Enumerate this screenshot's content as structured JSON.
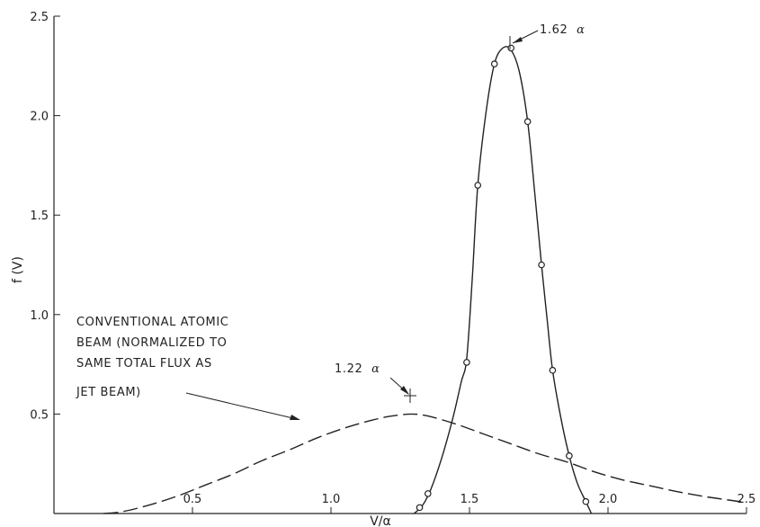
{
  "chart_data": {
    "type": "line",
    "xlabel": "V/α",
    "ylabel": "f (V)",
    "xlim": [
      0,
      2.5
    ],
    "ylim": [
      0,
      2.5
    ],
    "x_ticks": [
      0.5,
      1.0,
      1.5,
      2.0,
      2.5
    ],
    "x_tick_labels": [
      "0.5",
      "1.0",
      "1.5",
      "2.0",
      "2.5"
    ],
    "y_ticks": [
      0.5,
      1.0,
      1.5,
      2.0,
      2.5
    ],
    "y_tick_labels": [
      "0.5",
      "1.0",
      "1.5",
      "2.0",
      "2.5"
    ],
    "grid": false,
    "series": [
      {
        "style": "solid",
        "marker": "circle",
        "color": "#222222",
        "points": [
          [
            1.32,
            0.03
          ],
          [
            1.35,
            0.1
          ],
          [
            1.49,
            0.76
          ],
          [
            1.53,
            1.65
          ],
          [
            1.59,
            2.26
          ],
          [
            1.65,
            2.34
          ],
          [
            1.71,
            1.97
          ],
          [
            1.76,
            1.25
          ],
          [
            1.8,
            0.72
          ],
          [
            1.86,
            0.29
          ],
          [
            1.92,
            0.06
          ]
        ],
        "curve": [
          [
            1.3,
            0.0
          ],
          [
            1.33,
            0.04
          ],
          [
            1.36,
            0.12
          ],
          [
            1.4,
            0.28
          ],
          [
            1.44,
            0.48
          ],
          [
            1.47,
            0.66
          ],
          [
            1.49,
            0.78
          ],
          [
            1.51,
            1.18
          ],
          [
            1.53,
            1.65
          ],
          [
            1.56,
            2.02
          ],
          [
            1.59,
            2.26
          ],
          [
            1.62,
            2.34
          ],
          [
            1.65,
            2.33
          ],
          [
            1.68,
            2.22
          ],
          [
            1.71,
            1.97
          ],
          [
            1.735,
            1.62
          ],
          [
            1.76,
            1.25
          ],
          [
            1.78,
            0.98
          ],
          [
            1.8,
            0.72
          ],
          [
            1.83,
            0.48
          ],
          [
            1.86,
            0.29
          ],
          [
            1.89,
            0.15
          ],
          [
            1.92,
            0.06
          ],
          [
            1.94,
            0.0
          ]
        ]
      },
      {
        "style": "dashed",
        "color": "#222222",
        "curve": [
          [
            0.18,
            0.0
          ],
          [
            0.25,
            0.01
          ],
          [
            0.35,
            0.045
          ],
          [
            0.45,
            0.09
          ],
          [
            0.55,
            0.145
          ],
          [
            0.65,
            0.2
          ],
          [
            0.75,
            0.265
          ],
          [
            0.85,
            0.32
          ],
          [
            0.95,
            0.38
          ],
          [
            1.05,
            0.43
          ],
          [
            1.15,
            0.47
          ],
          [
            1.22,
            0.49
          ],
          [
            1.29,
            0.5
          ],
          [
            1.35,
            0.49
          ],
          [
            1.45,
            0.45
          ],
          [
            1.55,
            0.4
          ],
          [
            1.65,
            0.35
          ],
          [
            1.75,
            0.3
          ],
          [
            1.85,
            0.26
          ],
          [
            1.95,
            0.21
          ],
          [
            2.05,
            0.17
          ],
          [
            2.15,
            0.14
          ],
          [
            2.25,
            0.11
          ],
          [
            2.35,
            0.085
          ],
          [
            2.45,
            0.065
          ],
          [
            2.5,
            0.055
          ]
        ]
      }
    ],
    "annotations": {
      "peak_jet": {
        "number": "1.62",
        "symbol": "α"
      },
      "peak_conventional": {
        "number": "1.22",
        "symbol": "α"
      },
      "conventional_lines": [
        "CONVENTIONAL ATOMIC",
        "BEAM (NORMALIZED TO",
        "SAME TOTAL FLUX AS",
        "JET BEAM)"
      ]
    }
  }
}
